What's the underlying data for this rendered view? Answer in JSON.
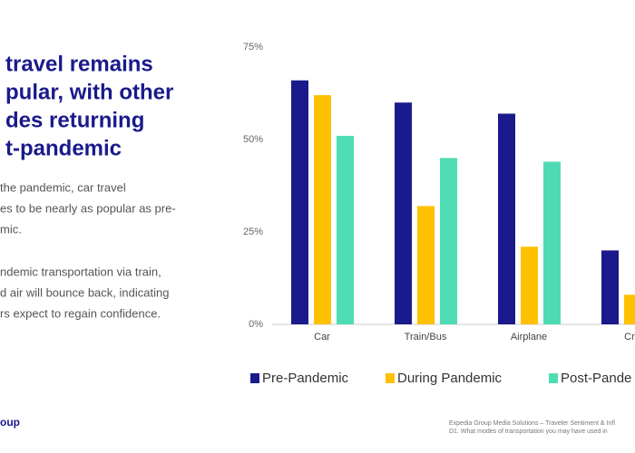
{
  "header": {
    "title_lines": [
      "travel remains",
      "pular, with other",
      "des returning",
      "t-pandemic"
    ],
    "body_lines": [
      "the pandemic, car travel",
      "es to be nearly as popular as pre-",
      "mic.",
      "ndemic transportation via train,",
      "d air will bounce back, indicating",
      "rs expect to regain confidence."
    ],
    "logo": "oup",
    "footer_lines": [
      "Expedia Group Media Solutions – Traveler Sentiment & Infl",
      "D1. What modes of transportation you may have used in"
    ]
  },
  "chart_data": {
    "type": "bar",
    "categories": [
      "Car",
      "Train/Bus",
      "Airplane",
      "Cru"
    ],
    "series": [
      {
        "name": "Pre-Pandemic",
        "color": "#1a1a8c",
        "values": [
          66,
          60,
          57,
          20
        ]
      },
      {
        "name": "During Pandemic",
        "color": "#ffc000",
        "values": [
          62,
          32,
          21,
          8
        ]
      },
      {
        "name": "Post-Pande",
        "color": "#4fdcb4",
        "values": [
          51,
          45,
          44,
          null
        ]
      }
    ],
    "ylim": [
      0,
      75
    ],
    "yticks": [
      {
        "value": 0,
        "label": "0%"
      },
      {
        "value": 25,
        "label": "25%"
      },
      {
        "value": 50,
        "label": "50%"
      },
      {
        "value": 75,
        "label": "75%"
      }
    ],
    "grid": false
  }
}
